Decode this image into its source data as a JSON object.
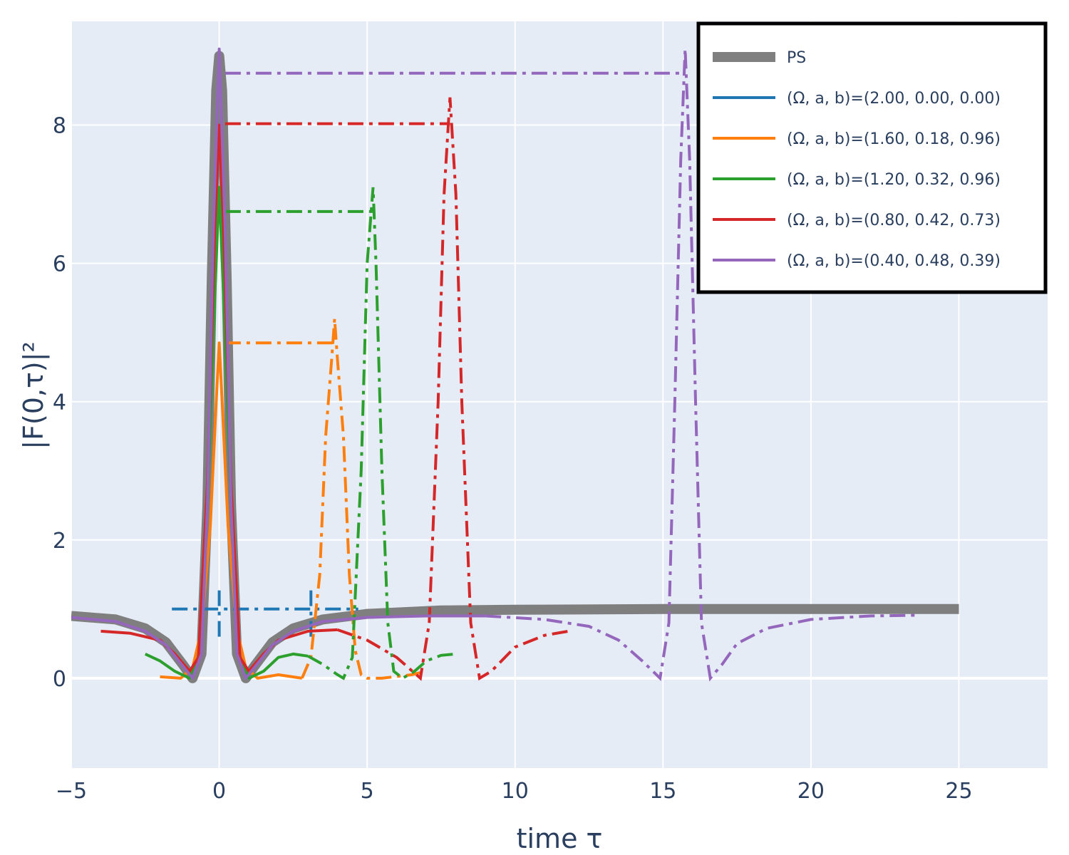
{
  "chart_data": {
    "type": "line",
    "xlabel": "time τ",
    "ylabel": "|F(0,τ)|²",
    "xlim": [
      -5,
      28
    ],
    "ylim": [
      -1.3,
      9.5
    ],
    "x_ticks": [
      -5,
      0,
      5,
      10,
      15,
      20,
      25
    ],
    "y_ticks": [
      0,
      2,
      4,
      6,
      8
    ],
    "x_tick_labels": [
      "−5",
      "0",
      "5",
      "10",
      "15",
      "20",
      "25"
    ],
    "y_tick_labels": [
      "0",
      "2",
      "4",
      "6",
      "8"
    ],
    "grid": true,
    "legend_position": "top-right",
    "colors": {
      "plot_bg": "#e5ecf6",
      "grid": "#ffffff",
      "text": "#2a3f5f"
    },
    "series": [
      {
        "name": "PS",
        "color": "#7f7f7f",
        "width": 14,
        "style": "solid",
        "x": [
          -5,
          -3.5,
          -2.5,
          -1.8,
          -1.2,
          -0.9,
          -0.6,
          -0.4,
          -0.25,
          -0.1,
          0,
          0.1,
          0.25,
          0.4,
          0.6,
          0.9,
          1.2,
          1.8,
          2.5,
          3.5,
          5,
          7.5,
          10,
          15,
          20,
          25
        ],
        "y": [
          0.9,
          0.85,
          0.72,
          0.52,
          0.18,
          0.0,
          0.35,
          2.5,
          5.8,
          8.5,
          9.0,
          8.5,
          5.8,
          2.5,
          0.35,
          0.0,
          0.18,
          0.52,
          0.72,
          0.85,
          0.93,
          0.98,
          0.99,
          1.0,
          1.0,
          1.0
        ]
      },
      {
        "name": "(Ω, a, b)=(2.00, 0.00, 0.00)",
        "color": "#1f77b4",
        "width": 4,
        "style": "dashdot",
        "segments": [
          {
            "x": [
              -1.6,
              4.7
            ],
            "y": [
              1.0,
              1.0
            ]
          },
          {
            "x": [
              0,
              0
            ],
            "y": [
              0.6,
              1.35
            ]
          },
          {
            "x": [
              3.1,
              3.1
            ],
            "y": [
              0.6,
              1.35
            ]
          }
        ]
      },
      {
        "name": "(Ω, a, b)=(1.60, 0.18, 0.96)",
        "color": "#ff7f0e",
        "width": 4,
        "style": "mixed",
        "x": [
          -2.0,
          -1.3,
          -0.9,
          -0.6,
          -0.3,
          -0.1,
          0,
          0.1,
          0.3,
          0.6,
          0.9,
          1.3,
          2.0,
          2.8,
          3.1,
          3.4,
          3.6,
          3.8,
          3.9,
          4.0,
          4.2,
          4.4,
          4.6,
          4.8,
          5.0,
          5.5,
          6.5,
          7.0
        ],
        "y": [
          0.02,
          0.0,
          0.15,
          0.7,
          2.2,
          4.0,
          4.85,
          4.0,
          2.2,
          0.7,
          0.15,
          0.0,
          0.05,
          0.0,
          0.3,
          1.5,
          3.5,
          4.6,
          5.2,
          4.6,
          3.5,
          1.5,
          0.4,
          0.05,
          0.0,
          0.0,
          0.05,
          0.1
        ],
        "dash_from_x": 2.7,
        "plateau": {
          "x": [
            0.2,
            3.9
          ],
          "y": 4.85
        }
      },
      {
        "name": "(Ω, a, b)=(1.20, 0.32, 0.96)",
        "color": "#2ca02c",
        "width": 4,
        "style": "mixed",
        "x": [
          -2.5,
          -2.0,
          -1.5,
          -1.0,
          -0.7,
          -0.4,
          -0.15,
          0,
          0.15,
          0.4,
          0.7,
          1.0,
          1.5,
          2.0,
          2.5,
          3.0,
          3.5,
          4.0,
          4.2,
          4.5,
          4.8,
          5.0,
          5.2,
          5.3,
          5.5,
          5.7,
          5.9,
          6.2,
          6.6,
          7.0,
          7.5,
          8.0
        ],
        "y": [
          0.35,
          0.25,
          0.1,
          0.0,
          0.3,
          2.5,
          5.5,
          7.1,
          5.5,
          2.5,
          0.3,
          0.0,
          0.1,
          0.3,
          0.35,
          0.32,
          0.2,
          0.05,
          0.0,
          0.3,
          3.0,
          6.0,
          7.1,
          6.0,
          3.0,
          0.8,
          0.1,
          0.0,
          0.1,
          0.25,
          0.33,
          0.35
        ],
        "dash_from_x": 3.0,
        "plateau": {
          "x": [
            0.2,
            5.2
          ],
          "y": 6.75
        }
      },
      {
        "name": "(Ω, a, b)=(0.80, 0.42, 0.73)",
        "color": "#d62728",
        "width": 4,
        "style": "mixed",
        "x": [
          -4.0,
          -3.0,
          -2.0,
          -1.5,
          -1.0,
          -0.7,
          -0.4,
          -0.15,
          0,
          0.15,
          0.4,
          0.7,
          1.0,
          1.5,
          2.0,
          3.0,
          4.0,
          5.0,
          6.0,
          6.8,
          7.1,
          7.4,
          7.6,
          7.8,
          8.0,
          8.2,
          8.5,
          8.8,
          9.2,
          10.0,
          11.0,
          11.8
        ],
        "y": [
          0.68,
          0.65,
          0.55,
          0.35,
          0.1,
          0.3,
          2.8,
          6.5,
          8.0,
          6.5,
          2.8,
          0.3,
          0.1,
          0.35,
          0.55,
          0.68,
          0.7,
          0.55,
          0.3,
          0.0,
          0.8,
          4.0,
          7.0,
          8.4,
          7.0,
          4.0,
          0.8,
          0.0,
          0.1,
          0.45,
          0.62,
          0.68
        ],
        "dash_from_x": 4.0,
        "plateau": {
          "x": [
            0.2,
            7.8
          ],
          "y": 8.02
        }
      },
      {
        "name": "(Ω, a, b)=(0.40, 0.48, 0.39)",
        "color": "#9467bd",
        "width": 4,
        "style": "mixed",
        "x": [
          -5,
          -3.5,
          -2.5,
          -1.8,
          -1.2,
          -0.9,
          -0.6,
          -0.4,
          -0.2,
          0,
          0.2,
          0.4,
          0.6,
          0.9,
          1.2,
          1.8,
          2.5,
          3.5,
          5,
          7,
          9,
          11,
          12.5,
          13.5,
          14.3,
          14.9,
          15.2,
          15.4,
          15.6,
          15.75,
          15.9,
          16.1,
          16.3,
          16.6,
          17.0,
          17.5,
          18.5,
          20,
          22,
          23.6
        ],
        "y": [
          0.88,
          0.82,
          0.68,
          0.48,
          0.16,
          0.0,
          0.35,
          2.5,
          6.5,
          9.1,
          6.5,
          2.5,
          0.35,
          0.0,
          0.16,
          0.48,
          0.68,
          0.82,
          0.88,
          0.9,
          0.9,
          0.85,
          0.75,
          0.55,
          0.25,
          0.0,
          0.8,
          4.0,
          7.5,
          9.1,
          7.5,
          4.0,
          0.8,
          0.0,
          0.2,
          0.5,
          0.72,
          0.85,
          0.9,
          0.91
        ],
        "dash_from_x": 8.0,
        "plateau": {
          "x": [
            0.2,
            15.75
          ],
          "y": 8.75
        }
      }
    ]
  }
}
